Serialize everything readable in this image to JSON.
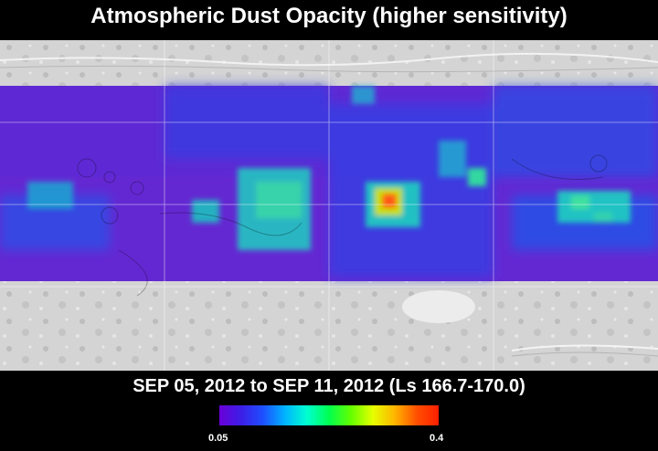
{
  "title": "Atmospheric Dust Opacity (higher sensitivity)",
  "date_range": "SEP 05, 2012 to SEP 11, 2012 (Ls 166.7-170.0)",
  "legend": {
    "min_label": "0.05",
    "max_label": "0.4",
    "colors": [
      "#6a00d8",
      "#3c1ee6",
      "#1e50ff",
      "#00b4ff",
      "#00ffd0",
      "#00ff50",
      "#64ff00",
      "#e6ff00",
      "#ffb400",
      "#ff5000",
      "#ff1e00"
    ]
  },
  "map": {
    "colors": {
      "background_terrain": "#d8d8d8",
      "low_opacity": "#6428d2",
      "moderate_opacity": "#2a50e6",
      "elevated_opacity": "#1ecfc0",
      "high_opacity": "#ff5a14"
    }
  }
}
